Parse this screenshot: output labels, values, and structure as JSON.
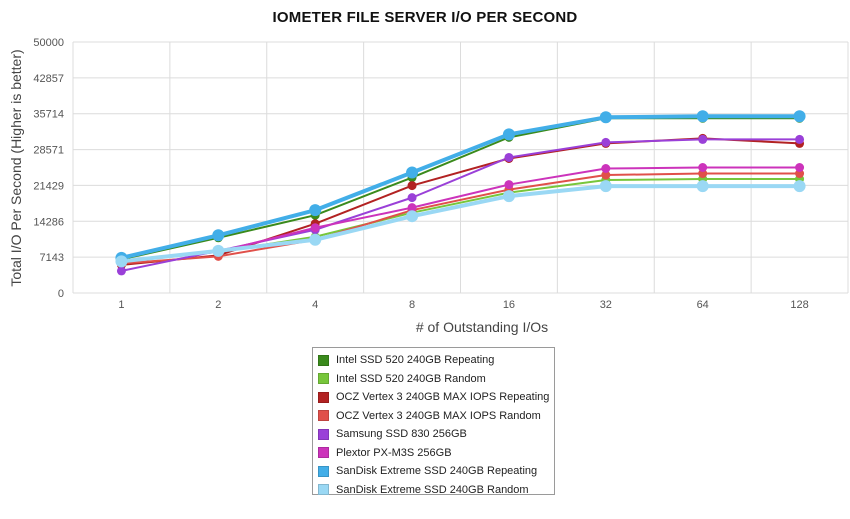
{
  "chart_data": {
    "type": "line",
    "title": "IOMETER FILE SERVER I/O PER SECOND",
    "xlabel": "# of Outstanding I/Os",
    "ylabel": "Total I/O Per Second (Higher is better)",
    "categories": [
      "1",
      "2",
      "4",
      "8",
      "16",
      "32",
      "64",
      "128"
    ],
    "yticks": [
      "0",
      "7143",
      "14286",
      "21429",
      "28571",
      "35714",
      "42857",
      "50000"
    ],
    "ylim": [
      0,
      50000
    ],
    "grid": true,
    "legend_position": "bottom",
    "series": [
      {
        "name": "Intel SSD 520 240GB Repeating",
        "color": "#3a8a1c",
        "values": [
          6700,
          11000,
          15500,
          23000,
          31000,
          34800,
          34800,
          34800
        ]
      },
      {
        "name": "Intel SSD 520 240GB Random",
        "color": "#77c63b",
        "values": [
          6500,
          8200,
          11200,
          16000,
          20000,
          22500,
          22700,
          22700
        ]
      },
      {
        "name": "OCZ Vertex 3 240GB MAX IOPS Repeating",
        "color": "#b22222",
        "values": [
          5600,
          7500,
          13800,
          21400,
          26800,
          29800,
          30800,
          29800
        ]
      },
      {
        "name": "OCZ Vertex 3 240GB MAX IOPS Random",
        "color": "#e0504a",
        "values": [
          5900,
          7300,
          10600,
          16500,
          20600,
          23500,
          23800,
          23800
        ]
      },
      {
        "name": "Samsung SSD 830 256GB",
        "color": "#9a40d8",
        "values": [
          4400,
          8400,
          12600,
          19000,
          27000,
          30000,
          30600,
          30600
        ]
      },
      {
        "name": "Plextor PX-M3S 256GB",
        "color": "#cc33bb",
        "values": [
          6200,
          8200,
          13000,
          17000,
          21600,
          24800,
          25000,
          25000
        ]
      },
      {
        "name": "SanDisk Extreme SSD 240GB Repeating",
        "color": "#42aee8",
        "values": [
          7000,
          11500,
          16500,
          24000,
          31600,
          35000,
          35200,
          35200
        ]
      },
      {
        "name": "SanDisk Extreme SSD 240GB Random",
        "color": "#9ad8f4",
        "values": [
          6300,
          8400,
          10600,
          15300,
          19300,
          21300,
          21300,
          21300
        ]
      }
    ]
  }
}
